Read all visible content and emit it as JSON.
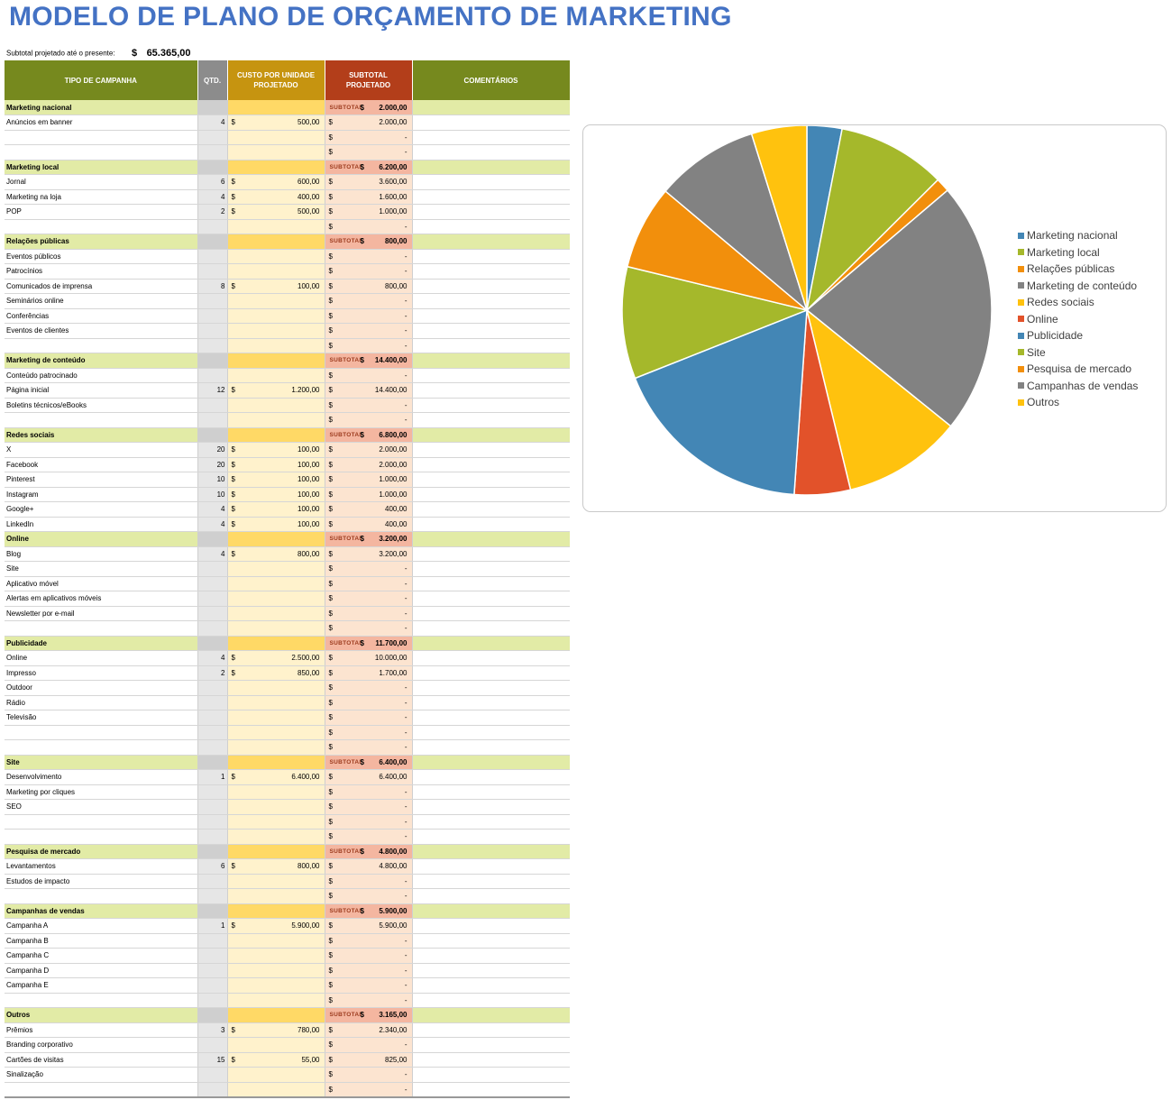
{
  "title": "MODELO DE PLANO DE ORÇAMENTO DE MARKETING",
  "summary": {
    "label": "Subtotal projetado até o presente:",
    "currency": "$",
    "value": "65.365,00"
  },
  "headers": {
    "type": "TIPO DE CAMPANHA",
    "qty": "QTD.",
    "cost": "CUSTO POR UNIDADE PROJETADO",
    "subtotal": "SUBTOTAL PROJETADO",
    "comments": "COMENTÁRIOS"
  },
  "labels": {
    "subtot": "SUBTOTAL",
    "currency": "$"
  },
  "categories": [
    {
      "name": "Marketing nacional",
      "subtotal": "2.000,00",
      "rows": [
        {
          "name": "Anúncios em banner",
          "qty": "4",
          "cost": "500,00",
          "sub": "2.000,00"
        },
        {
          "name": "",
          "qty": "",
          "cost": "",
          "sub": "-"
        },
        {
          "name": "",
          "qty": "",
          "cost": "",
          "sub": "-"
        }
      ]
    },
    {
      "name": "Marketing local",
      "subtotal": "6.200,00",
      "rows": [
        {
          "name": "Jornal",
          "qty": "6",
          "cost": "600,00",
          "sub": "3.600,00"
        },
        {
          "name": "Marketing na loja",
          "qty": "4",
          "cost": "400,00",
          "sub": "1.600,00"
        },
        {
          "name": "POP",
          "qty": "2",
          "cost": "500,00",
          "sub": "1.000,00"
        },
        {
          "name": "",
          "qty": "",
          "cost": "",
          "sub": "-"
        }
      ]
    },
    {
      "name": "Relações públicas",
      "subtotal": "800,00",
      "rows": [
        {
          "name": "Eventos públicos",
          "qty": "",
          "cost": "",
          "sub": "-"
        },
        {
          "name": "Patrocínios",
          "qty": "",
          "cost": "",
          "sub": "-"
        },
        {
          "name": "Comunicados de imprensa",
          "qty": "8",
          "cost": "100,00",
          "sub": "800,00"
        },
        {
          "name": "Seminários online",
          "qty": "",
          "cost": "",
          "sub": "-"
        },
        {
          "name": "Conferências",
          "qty": "",
          "cost": "",
          "sub": "-"
        },
        {
          "name": "Eventos de clientes",
          "qty": "",
          "cost": "",
          "sub": "-"
        },
        {
          "name": "",
          "qty": "",
          "cost": "",
          "sub": "-"
        }
      ]
    },
    {
      "name": "Marketing de conteúdo",
      "subtotal": "14.400,00",
      "rows": [
        {
          "name": "Conteúdo patrocinado",
          "qty": "",
          "cost": "",
          "sub": "-"
        },
        {
          "name": "Página inicial",
          "qty": "12",
          "cost": "1.200,00",
          "sub": "14.400,00"
        },
        {
          "name": "Boletins técnicos/eBooks",
          "qty": "",
          "cost": "",
          "sub": "-"
        },
        {
          "name": "",
          "qty": "",
          "cost": "",
          "sub": "-"
        }
      ]
    },
    {
      "name": "Redes sociais",
      "subtotal": "6.800,00",
      "rows": [
        {
          "name": "X",
          "qty": "20",
          "cost": "100,00",
          "sub": "2.000,00"
        },
        {
          "name": "Facebook",
          "qty": "20",
          "cost": "100,00",
          "sub": "2.000,00"
        },
        {
          "name": "Pinterest",
          "qty": "10",
          "cost": "100,00",
          "sub": "1.000,00"
        },
        {
          "name": "Instagram",
          "qty": "10",
          "cost": "100,00",
          "sub": "1.000,00"
        },
        {
          "name": "Google+",
          "qty": "4",
          "cost": "100,00",
          "sub": "400,00"
        },
        {
          "name": "LinkedIn",
          "qty": "4",
          "cost": "100,00",
          "sub": "400,00"
        }
      ]
    },
    {
      "name": "Online",
      "subtotal": "3.200,00",
      "rows": [
        {
          "name": "Blog",
          "qty": "4",
          "cost": "800,00",
          "sub": "3.200,00"
        },
        {
          "name": "Site",
          "qty": "",
          "cost": "",
          "sub": "-"
        },
        {
          "name": "Aplicativo móvel",
          "qty": "",
          "cost": "",
          "sub": "-"
        },
        {
          "name": "Alertas em aplicativos móveis",
          "qty": "",
          "cost": "",
          "sub": "-"
        },
        {
          "name": "Newsletter por e-mail",
          "qty": "",
          "cost": "",
          "sub": "-"
        },
        {
          "name": "",
          "qty": "",
          "cost": "",
          "sub": "-"
        }
      ]
    },
    {
      "name": "Publicidade",
      "subtotal": "11.700,00",
      "rows": [
        {
          "name": "Online",
          "qty": "4",
          "cost": "2.500,00",
          "sub": "10.000,00"
        },
        {
          "name": "Impresso",
          "qty": "2",
          "cost": "850,00",
          "sub": "1.700,00"
        },
        {
          "name": "Outdoor",
          "qty": "",
          "cost": "",
          "sub": "-"
        },
        {
          "name": "Rádio",
          "qty": "",
          "cost": "",
          "sub": "-"
        },
        {
          "name": "Televisão",
          "qty": "",
          "cost": "",
          "sub": "-"
        },
        {
          "name": "",
          "qty": "",
          "cost": "",
          "sub": "-"
        },
        {
          "name": "",
          "qty": "",
          "cost": "",
          "sub": "-"
        }
      ]
    },
    {
      "name": "Site",
      "subtotal": "6.400,00",
      "rows": [
        {
          "name": "Desenvolvimento",
          "qty": "1",
          "cost": "6.400,00",
          "sub": "6.400,00"
        },
        {
          "name": "Marketing por cliques",
          "qty": "",
          "cost": "",
          "sub": "-"
        },
        {
          "name": "SEO",
          "qty": "",
          "cost": "",
          "sub": "-"
        },
        {
          "name": "",
          "qty": "",
          "cost": "",
          "sub": "-"
        },
        {
          "name": "",
          "qty": "",
          "cost": "",
          "sub": "-"
        }
      ]
    },
    {
      "name": "Pesquisa de mercado",
      "subtotal": "4.800,00",
      "rows": [
        {
          "name": "Levantamentos",
          "qty": "6",
          "cost": "800,00",
          "sub": "4.800,00"
        },
        {
          "name": "Estudos de impacto",
          "qty": "",
          "cost": "",
          "sub": "-"
        },
        {
          "name": "",
          "qty": "",
          "cost": "",
          "sub": "-"
        }
      ]
    },
    {
      "name": "Campanhas de vendas",
      "subtotal": "5.900,00",
      "rows": [
        {
          "name": "Campanha A",
          "qty": "1",
          "cost": "5.900,00",
          "sub": "5.900,00"
        },
        {
          "name": "Campanha B",
          "qty": "",
          "cost": "",
          "sub": "-"
        },
        {
          "name": "Campanha C",
          "qty": "",
          "cost": "",
          "sub": "-"
        },
        {
          "name": "Campanha D",
          "qty": "",
          "cost": "",
          "sub": "-"
        },
        {
          "name": "Campanha E",
          "qty": "",
          "cost": "",
          "sub": "-"
        },
        {
          "name": "",
          "qty": "",
          "cost": "",
          "sub": "-"
        }
      ]
    },
    {
      "name": "Outros",
      "subtotal": "3.165,00",
      "rows": [
        {
          "name": "Prêmios",
          "qty": "3",
          "cost": "780,00",
          "sub": "2.340,00"
        },
        {
          "name": "Branding corporativo",
          "qty": "",
          "cost": "",
          "sub": "-"
        },
        {
          "name": "Cartões de visitas",
          "qty": "15",
          "cost": "55,00",
          "sub": "825,00"
        },
        {
          "name": "Sinalização",
          "qty": "",
          "cost": "",
          "sub": "-"
        },
        {
          "name": "",
          "qty": "",
          "cost": "",
          "sub": "-"
        }
      ]
    }
  ],
  "chart_data": {
    "type": "pie",
    "title": "",
    "start_angle_deg": 0,
    "direction": "clockwise",
    "legend_position": "right",
    "categories": [
      "Marketing nacional",
      "Marketing local",
      "Relações públicas",
      "Marketing de conteúdo",
      "Redes sociais",
      "Online",
      "Publicidade",
      "Site",
      "Pesquisa de mercado",
      "Campanhas de vendas",
      "Outros"
    ],
    "values": [
      2000,
      6200,
      800,
      14400,
      6800,
      3200,
      11700,
      6400,
      4800,
      5900,
      3165
    ],
    "colors": [
      "#4386B5",
      "#A5B82B",
      "#F28F0C",
      "#828282",
      "#FFC20E",
      "#E2522A",
      "#4386B5",
      "#A5B82B",
      "#F28F0C",
      "#828282",
      "#FFC20E"
    ]
  }
}
